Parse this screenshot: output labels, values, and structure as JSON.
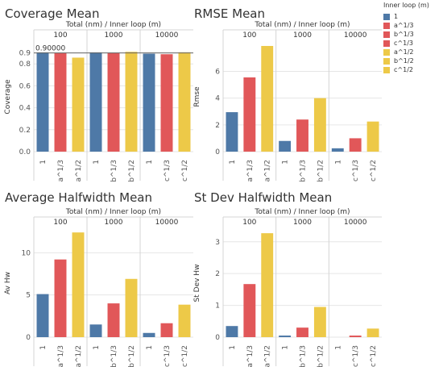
{
  "colors": {
    "a": "#e15759",
    "b": "#4e79a7",
    "c": "#edc948",
    "grid": "#e6e6e6",
    "divider": "#d4d4d4",
    "refline": "#666666"
  },
  "legend": {
    "title": "Inner loop (m)",
    "items": [
      {
        "label": "1",
        "color": "#4e79a7"
      },
      {
        "label": "a^1/3",
        "color": "#e15759"
      },
      {
        "label": "b^1/3",
        "color": "#e15759"
      },
      {
        "label": "c^1/3",
        "color": "#e15759"
      },
      {
        "label": "a^1/2",
        "color": "#edc948"
      },
      {
        "label": "b^1/2",
        "color": "#edc948"
      },
      {
        "label": "c^1/2",
        "color": "#edc948"
      }
    ]
  },
  "chart_data": [
    {
      "type": "bar",
      "title": "Coverage Mean",
      "column_header": "Total (nm) / Inner loop (m)",
      "groups": [
        {
          "name": "100",
          "categories": [
            "1",
            "a^1/3",
            "a^1/2"
          ],
          "values": [
            0.905,
            0.897,
            0.857
          ],
          "colors": [
            "#4e79a7",
            "#e15759",
            "#edc948"
          ]
        },
        {
          "name": "1000",
          "categories": [
            "1",
            "b^1/3",
            "b^1/2"
          ],
          "values": [
            0.905,
            0.902,
            0.91
          ],
          "colors": [
            "#4e79a7",
            "#e15759",
            "#edc948"
          ]
        },
        {
          "name": "10000",
          "categories": [
            "1",
            "c^1/3",
            "c^1/2"
          ],
          "values": [
            0.893,
            0.888,
            0.906
          ],
          "colors": [
            "#4e79a7",
            "#e15759",
            "#edc948"
          ]
        }
      ],
      "ylabel": "Coverage",
      "ylim": [
        0,
        1.0
      ],
      "yticks": [
        0.0,
        0.2,
        0.4,
        0.6,
        0.8,
        0.9
      ],
      "yticklabels": [
        "0.0",
        "0.2",
        "0.4",
        "0.6",
        "0.8",
        "0.9"
      ],
      "reference_line": {
        "value": 0.9,
        "label": "0.90000"
      }
    },
    {
      "type": "bar",
      "title": "RMSE Mean",
      "column_header": "Total (nm) / Inner loop (m)",
      "groups": [
        {
          "name": "100",
          "categories": [
            "1",
            "a^1/3",
            "a^1/2"
          ],
          "values": [
            2.95,
            5.55,
            7.9
          ],
          "colors": [
            "#4e79a7",
            "#e15759",
            "#edc948"
          ]
        },
        {
          "name": "1000",
          "categories": [
            "1",
            "b^1/3",
            "b^1/2"
          ],
          "values": [
            0.8,
            2.4,
            4.0
          ],
          "colors": [
            "#4e79a7",
            "#e15759",
            "#edc948"
          ]
        },
        {
          "name": "10000",
          "categories": [
            "1",
            "c^1/3",
            "c^1/2"
          ],
          "values": [
            0.25,
            1.0,
            2.25
          ],
          "colors": [
            "#4e79a7",
            "#e15759",
            "#edc948"
          ]
        }
      ],
      "ylabel": "Rmse",
      "ylim": [
        0,
        8.2
      ],
      "yticks": [
        0,
        2,
        4,
        6
      ],
      "yticklabels": [
        "0",
        "2",
        "4",
        "6"
      ]
    },
    {
      "type": "bar",
      "title": "Average Halfwidth Mean",
      "column_header": "Total (nm) / Inner loop (m)",
      "groups": [
        {
          "name": "100",
          "categories": [
            "1",
            "a^1/3",
            "a^1/2"
          ],
          "values": [
            5.1,
            9.2,
            12.4
          ],
          "colors": [
            "#4e79a7",
            "#e15759",
            "#edc948"
          ]
        },
        {
          "name": "1000",
          "categories": [
            "1",
            "b^1/3",
            "b^1/2"
          ],
          "values": [
            1.5,
            4.0,
            6.9
          ],
          "colors": [
            "#4e79a7",
            "#e15759",
            "#edc948"
          ]
        },
        {
          "name": "10000",
          "categories": [
            "1",
            "c^1/3",
            "c^1/2"
          ],
          "values": [
            0.5,
            1.65,
            3.85
          ],
          "colors": [
            "#4e79a7",
            "#e15759",
            "#edc948"
          ]
        }
      ],
      "ylabel": "Av Hw",
      "ylim": [
        0,
        12.8
      ],
      "yticks": [
        0,
        5,
        10
      ],
      "yticklabels": [
        "0",
        "5",
        "10"
      ]
    },
    {
      "type": "bar",
      "title": "St Dev Halfwidth Mean",
      "column_header": "Total (nm) / Inner loop (m)",
      "groups": [
        {
          "name": "100",
          "categories": [
            "1",
            "a^1/3",
            "a^1/2"
          ],
          "values": [
            0.35,
            1.67,
            3.27
          ],
          "colors": [
            "#4e79a7",
            "#e15759",
            "#edc948"
          ]
        },
        {
          "name": "1000",
          "categories": [
            "1",
            "b^1/3",
            "b^1/2"
          ],
          "values": [
            0.05,
            0.3,
            0.95
          ],
          "colors": [
            "#4e79a7",
            "#e15759",
            "#edc948"
          ]
        },
        {
          "name": "10000",
          "categories": [
            "1",
            "c^1/3",
            "c^1/2"
          ],
          "values": [
            0.0,
            0.05,
            0.27
          ],
          "colors": [
            "#4e79a7",
            "#e15759",
            "#edc948"
          ]
        }
      ],
      "ylabel": "St Dev Hw",
      "ylim": [
        0,
        3.4
      ],
      "yticks": [
        0,
        1,
        2,
        3
      ],
      "yticklabels": [
        "0",
        "1",
        "2",
        "3"
      ]
    }
  ]
}
